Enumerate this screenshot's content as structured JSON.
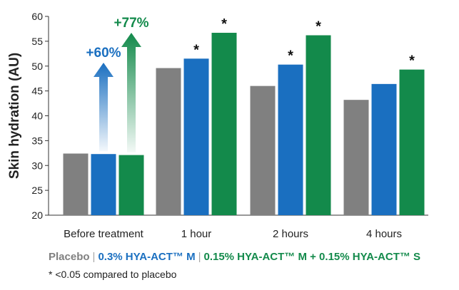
{
  "chart_data": {
    "type": "bar",
    "ylabel": "Skin hydration (AU)",
    "ylim": [
      20,
      60
    ],
    "yticks": [
      20,
      25,
      30,
      35,
      40,
      45,
      50,
      55,
      60
    ],
    "categories": [
      "Before treatment",
      "1 hour",
      "2 hours",
      "4 hours"
    ],
    "series": [
      {
        "name": "Placebo",
        "color": "#808080",
        "values": [
          32.4,
          49.6,
          46.0,
          43.2
        ]
      },
      {
        "name": "0.3% HYA-ACT™ M",
        "color": "#1a6fc0",
        "values": [
          32.3,
          51.5,
          50.3,
          46.4
        ]
      },
      {
        "name": "0.15% HYA-ACT™ M + 0.15% HYA-ACT™ S",
        "color": "#138a4b",
        "values": [
          32.1,
          56.7,
          56.2,
          49.3
        ]
      }
    ],
    "significance_marker": "*",
    "significant": [
      [
        false,
        false,
        false,
        false
      ],
      [
        false,
        true,
        true,
        false
      ],
      [
        false,
        true,
        true,
        true
      ]
    ],
    "annotations": [
      {
        "text": "+60%",
        "series": 1,
        "color": "#1a6fc0"
      },
      {
        "text": "+77%",
        "series": 2,
        "color": "#138a4b"
      }
    ],
    "grid": false,
    "legend_position": "bottom"
  },
  "footnote": "* <0.05 compared to placebo"
}
